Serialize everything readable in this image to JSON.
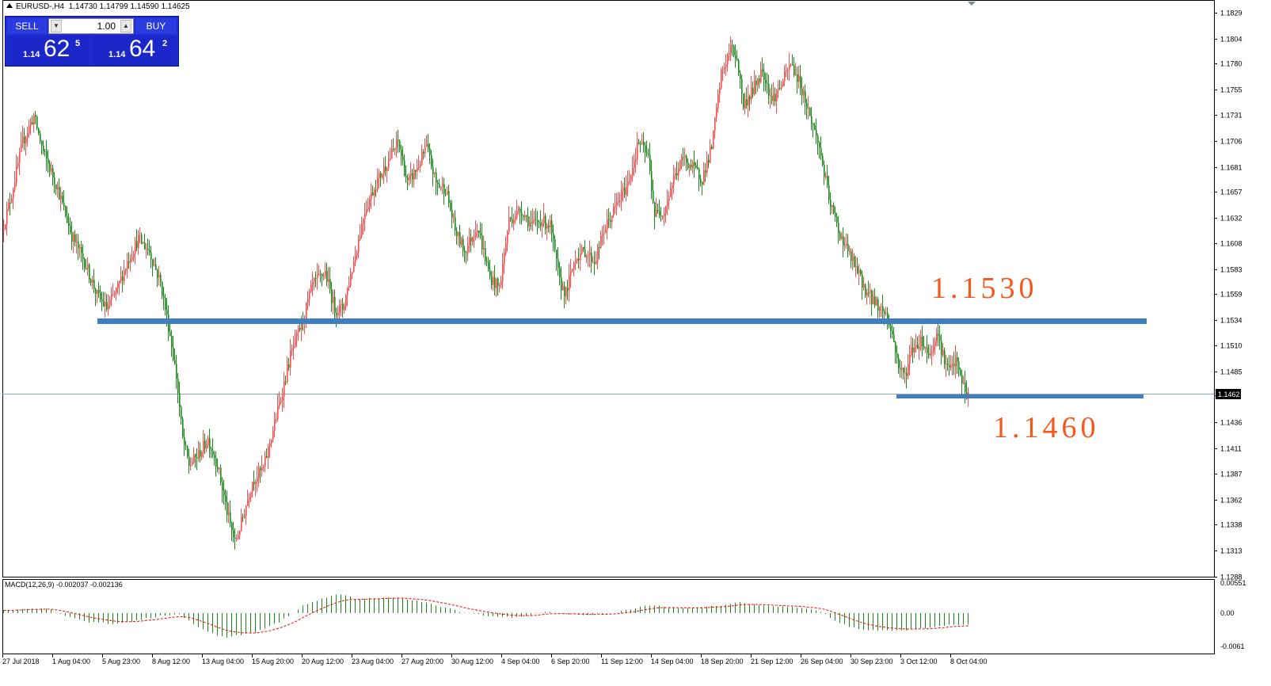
{
  "window": {
    "symbol": "EURUSD-,H4",
    "ohlc": "1.14730 1.14799 1.14590 1.14625"
  },
  "trade_panel": {
    "sell_label": "SELL",
    "buy_label": "BUY",
    "lot": "1.00",
    "bid": {
      "prefix": "1.14",
      "big": "62",
      "frac": "5"
    },
    "ask": {
      "prefix": "1.14",
      "big": "64",
      "frac": "2"
    }
  },
  "price_axis": {
    "labels": [
      "1.1829",
      "1.1804",
      "1.1780",
      "1.1755",
      "1.1731",
      "1.1706",
      "1.1681",
      "1.1657",
      "1.1632",
      "1.1608",
      "1.1583",
      "1.1559",
      "1.1534",
      "1.1510",
      "1.1485",
      "1.1462",
      "1.1436",
      "1.1411",
      "1.1387",
      "1.1362",
      "1.1338",
      "1.1313",
      "1.1288"
    ],
    "current_price": "1.1462",
    "ylim": [
      1.1288,
      1.1835
    ]
  },
  "time_axis": {
    "labels": [
      "27 Jul 2018",
      "1 Aug 04:00",
      "5 Aug 23:00",
      "8 Aug 12:00",
      "13 Aug 04:00",
      "15 Aug 20:00",
      "20 Aug 12:00",
      "23 Aug 04:00",
      "27 Aug 20:00",
      "30 Aug 12:00",
      "4 Sep 04:00",
      "6 Sep 20:00",
      "11 Sep 12:00",
      "14 Sep 04:00",
      "18 Sep 20:00",
      "21 Sep 12:00",
      "26 Sep 04:00",
      "30 Sep 23:00",
      "3 Oct 12:00",
      "8 Oct 04:00"
    ]
  },
  "macd": {
    "label": "MACD(12,26,9) -0.002037 -0.002136",
    "axis_labels": [
      "0.00551",
      "0.00",
      "-0.0061"
    ],
    "ylim": [
      -0.0061,
      0.0055
    ]
  },
  "annotations": {
    "resistance_text": "1.1530",
    "support_text": "1.1460"
  },
  "colors": {
    "bull": "#ff4d4d",
    "bear": "#1b8a1b",
    "horizontal_lines": "#3f7fbf",
    "annotation": "#f2591f",
    "signal": "#ff0000",
    "panel": "#1f2bd6"
  },
  "chart_data": {
    "type": "candlestick",
    "symbol": "EURUSD-,H4",
    "price_range": [
      1.1288,
      1.1835
    ],
    "levels": [
      {
        "label": "1.1530",
        "price": 1.1534
      },
      {
        "label": "1.1460",
        "price": 1.146
      },
      {
        "label": "current",
        "price": 1.1462
      }
    ],
    "path_anchors": [
      [
        0,
        1.162
      ],
      [
        6,
        1.1655
      ],
      [
        13,
        1.1705
      ],
      [
        20,
        1.173
      ],
      [
        26,
        1.1695
      ],
      [
        34,
        1.1665
      ],
      [
        44,
        1.1615
      ],
      [
        52,
        1.159
      ],
      [
        60,
        1.1558
      ],
      [
        66,
        1.1545
      ],
      [
        73,
        1.1565
      ],
      [
        79,
        1.159
      ],
      [
        86,
        1.1612
      ],
      [
        93,
        1.16
      ],
      [
        100,
        1.157
      ],
      [
        106,
        1.152
      ],
      [
        110,
        1.148
      ],
      [
        114,
        1.142
      ],
      [
        118,
        1.1395
      ],
      [
        124,
        1.1405
      ],
      [
        130,
        1.142
      ],
      [
        136,
        1.1395
      ],
      [
        142,
        1.135
      ],
      [
        147,
        1.132
      ],
      [
        152,
        1.1345
      ],
      [
        158,
        1.138
      ],
      [
        165,
        1.1392
      ],
      [
        172,
        1.1435
      ],
      [
        176,
        1.146
      ],
      [
        182,
        1.15
      ],
      [
        190,
        1.1535
      ],
      [
        196,
        1.1568
      ],
      [
        204,
        1.158
      ],
      [
        210,
        1.1545
      ],
      [
        215,
        1.1545
      ],
      [
        222,
        1.159
      ],
      [
        229,
        1.164
      ],
      [
        236,
        1.1665
      ],
      [
        243,
        1.1685
      ],
      [
        250,
        1.1705
      ],
      [
        256,
        1.1665
      ],
      [
        262,
        1.168
      ],
      [
        268,
        1.17
      ],
      [
        274,
        1.1665
      ],
      [
        280,
        1.166
      ],
      [
        286,
        1.162
      ],
      [
        292,
        1.16
      ],
      [
        300,
        1.1625
      ],
      [
        308,
        1.1575
      ],
      [
        314,
        1.1565
      ],
      [
        320,
        1.163
      ],
      [
        328,
        1.164
      ],
      [
        334,
        1.1625
      ],
      [
        340,
        1.163
      ],
      [
        346,
        1.1625
      ],
      [
        352,
        1.157
      ],
      [
        356,
        1.156
      ],
      [
        362,
        1.1595
      ],
      [
        368,
        1.16
      ],
      [
        374,
        1.159
      ],
      [
        380,
        1.162
      ],
      [
        388,
        1.1645
      ],
      [
        395,
        1.1665
      ],
      [
        402,
        1.1705
      ],
      [
        408,
        1.169
      ],
      [
        412,
        1.1635
      ],
      [
        418,
        1.164
      ],
      [
        424,
        1.167
      ],
      [
        430,
        1.169
      ],
      [
        436,
        1.168
      ],
      [
        442,
        1.167
      ],
      [
        448,
        1.17
      ],
      [
        454,
        1.177
      ],
      [
        460,
        1.1795
      ],
      [
        464,
        1.1785
      ],
      [
        468,
        1.174
      ],
      [
        474,
        1.1755
      ],
      [
        480,
        1.1775
      ],
      [
        486,
        1.1745
      ],
      [
        492,
        1.176
      ],
      [
        498,
        1.178
      ],
      [
        504,
        1.176
      ],
      [
        510,
        1.173
      ],
      [
        516,
        1.17
      ],
      [
        522,
        1.165
      ],
      [
        528,
        1.162
      ],
      [
        534,
        1.16
      ],
      [
        540,
        1.158
      ],
      [
        546,
        1.156
      ],
      [
        552,
        1.155
      ],
      [
        558,
        1.154
      ],
      [
        562,
        1.152
      ],
      [
        566,
        1.149
      ],
      [
        570,
        1.148
      ],
      [
        574,
        1.1505
      ],
      [
        580,
        1.1515
      ],
      [
        586,
        1.15
      ],
      [
        590,
        1.1525
      ],
      [
        594,
        1.15
      ],
      [
        598,
        1.1485
      ],
      [
        602,
        1.1495
      ],
      [
        606,
        1.1475
      ],
      [
        609,
        1.1462
      ]
    ],
    "macd_anchors": [
      [
        0,
        0.0005
      ],
      [
        25,
        0.001
      ],
      [
        50,
        -0.0015
      ],
      [
        70,
        -0.002
      ],
      [
        90,
        -0.001
      ],
      [
        110,
        0.0
      ],
      [
        125,
        -0.003
      ],
      [
        140,
        -0.0045
      ],
      [
        160,
        -0.0035
      ],
      [
        175,
        -0.0015
      ],
      [
        190,
        0.0015
      ],
      [
        210,
        0.0035
      ],
      [
        225,
        0.0025
      ],
      [
        245,
        0.003
      ],
      [
        265,
        0.002
      ],
      [
        285,
        0.0005
      ],
      [
        305,
        -0.0005
      ],
      [
        325,
        -0.0008
      ],
      [
        345,
        0.0003
      ],
      [
        365,
        -0.0005
      ],
      [
        385,
        0.0
      ],
      [
        400,
        0.001
      ],
      [
        410,
        0.0015
      ],
      [
        430,
        0.0008
      ],
      [
        450,
        0.0012
      ],
      [
        465,
        0.002
      ],
      [
        480,
        0.0015
      ],
      [
        500,
        0.001
      ],
      [
        515,
        0.0005
      ],
      [
        525,
        -0.0015
      ],
      [
        540,
        -0.003
      ],
      [
        560,
        -0.0032
      ],
      [
        575,
        -0.003
      ],
      [
        595,
        -0.0022
      ],
      [
        609,
        -0.002
      ]
    ],
    "candle_count": 610
  }
}
